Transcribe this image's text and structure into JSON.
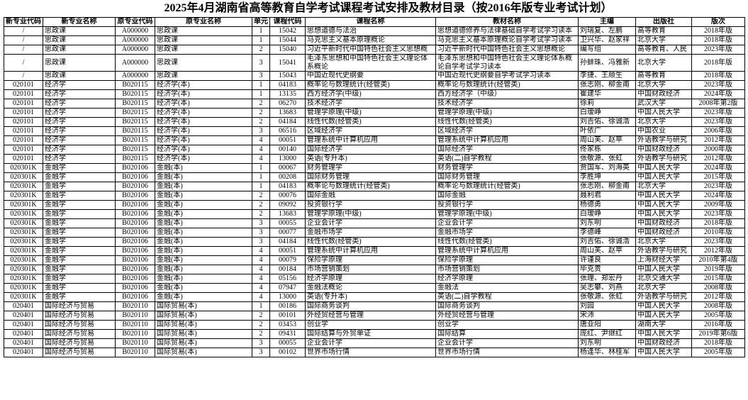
{
  "title": "2025年4月湖南省高等教育自学考试课程考试安排及教材目录（按2016年版专业考试计划）",
  "table": {
    "header": [
      "新专业代码",
      "新专业名称",
      "原专业代码",
      "原专业名称",
      "单元",
      "课程代码",
      "课程名称",
      "教材名称",
      "主编",
      "出版社",
      "版次"
    ],
    "rows": [
      [
        "/",
        "思政课",
        "A000000",
        "思政课",
        "1",
        "15042",
        "思想道德与法治",
        "思想道德修养与法律基础自学考试学习读本",
        "刘瑞复、左鹏",
        "高等教育",
        "2018年版"
      ],
      [
        "/",
        "思政课",
        "A000000",
        "思政课",
        "1",
        "15044",
        "马克思主义基本原理概论",
        "马克思主义基本原理概论自学考试学习读本",
        "卫兴华、赵家祥",
        "北京大学",
        "2018年版"
      ],
      [
        "/",
        "思政课",
        "A000000",
        "思政课",
        "2",
        "15040",
        "习近平新时代中国特色社会主义思想概",
        "习近平新时代中国特色社会主义思想概论",
        "编写组",
        "高等教育、人民",
        "2023年版"
      ],
      [
        "/",
        "思政课",
        "A000000",
        "思政课",
        "3",
        "15041",
        "毛泽东思想和中国特色社会主义理论体系概论",
        "毛泽东思想和中国特色社会主义理论体系概论自学考试学习读本",
        "孙蚌珠、冯雅新",
        "北京大学",
        "2018年版"
      ],
      [
        "/",
        "思政课",
        "A000000",
        "思政课",
        "3",
        "15043",
        "中国近现代史纲要",
        "中国近现代史纲要自学考试学习读本",
        "李捷、王顺生",
        "高等教育",
        "2018年版"
      ],
      [
        "020101",
        "经济学",
        "B020115",
        "经济学(本)",
        "1",
        "04183",
        "概率论与数理统计(经管类)",
        "概率论与数理统计(经管类)",
        "张志刚、柳金甫",
        "北京大学",
        "2023年版"
      ],
      [
        "020101",
        "经济学",
        "B020115",
        "经济学(本)",
        "1",
        "13135",
        "西方经济学(中级)",
        "西方经济学（中级）",
        "崔建华",
        "中国财政经济",
        "2024年版"
      ],
      [
        "020101",
        "经济学",
        "B020115",
        "经济学(本)",
        "2",
        "06270",
        "技术经济学",
        "技术经济学",
        "徐莉",
        "武汉大学",
        "2008年第2版"
      ],
      [
        "020101",
        "经济学",
        "B020115",
        "经济学(本)",
        "2",
        "13683",
        "管理学原理(中级)",
        "管理学原理(中级)",
        "白瑷峥",
        "中国人民大学",
        "2023年版"
      ],
      [
        "020101",
        "经济学",
        "B020115",
        "经济学(本)",
        "2",
        "04184",
        "线性代数(经管类)",
        "线性代数(经管类)",
        "刘吉佑、徐诚浩",
        "北京大学",
        "2023年版"
      ],
      [
        "020101",
        "经济学",
        "B020115",
        "经济学(本)",
        "3",
        "06516",
        "区域经济学",
        "区域经济学",
        "叶依广",
        "中国农业",
        "2006年版"
      ],
      [
        "020101",
        "经济学",
        "B020115",
        "经济学(本)",
        "4",
        "00051",
        "管理系统中计算机应用",
        "管理系统中计算机应用",
        "周山芙、赵苹",
        "外语教学与研究",
        "2012年版"
      ],
      [
        "020101",
        "经济学",
        "B020115",
        "经济学(本)",
        "4",
        "00140",
        "国际经济学",
        "国际经济学",
        "佟家栋",
        "中国财政经济",
        "2000年版"
      ],
      [
        "020101",
        "经济学",
        "B020115",
        "经济学(本)",
        "4",
        "13000",
        "英语(专升本)",
        "英语(二)自学教程",
        "张敬源、张虹",
        "外语教学与研究",
        "2012年版"
      ],
      [
        "020301K",
        "金融学",
        "B020106",
        "金融(本)",
        "1",
        "00067",
        "财务管理学",
        "财务管理学",
        "贾国军、刘海英",
        "中国人民大学",
        "2024年版"
      ],
      [
        "020301K",
        "金融学",
        "B020106",
        "金融(本)",
        "1",
        "00208",
        "国际财务管理",
        "国际财务管理",
        "李胜坤",
        "中国人民大学",
        "2015年版"
      ],
      [
        "020301K",
        "金融学",
        "B020106",
        "金融(本)",
        "1",
        "04183",
        "概率论与数理统计(经管类)",
        "概率论与数理统计(经管类)",
        "张志刚、柳金甫",
        "北京大学",
        "2023年版"
      ],
      [
        "020301K",
        "金融学",
        "B020106",
        "金融(本)",
        "2",
        "00076",
        "国际金融",
        "国际金融",
        "聂利君",
        "中国人民大学",
        "2024年版"
      ],
      [
        "020301K",
        "金融学",
        "B020106",
        "金融(本)",
        "2",
        "09092",
        "投资银行学",
        "投资银行学",
        "杨德勇",
        "中国人民大学",
        "2009年版"
      ],
      [
        "020301K",
        "金融学",
        "B020106",
        "金融(本)",
        "2",
        "13683",
        "管理学原理(中级)",
        "管理学原理(中级)",
        "白瑷峥",
        "中国人民大学",
        "2023年版"
      ],
      [
        "020301K",
        "金融学",
        "B020106",
        "金融(本)",
        "3",
        "00055",
        "企业会计学",
        "企业会计学",
        "刘东明",
        "中国财政经济",
        "2018年版"
      ],
      [
        "020301K",
        "金融学",
        "B020106",
        "金融(本)",
        "3",
        "00077",
        "金融市场学",
        "金融市场学",
        "李德峰",
        "中国财政经济",
        "2010年版"
      ],
      [
        "020301K",
        "金融学",
        "B020106",
        "金融(本)",
        "3",
        "04184",
        "线性代数(经管类)",
        "线性代数(经管类)",
        "刘吉佑、徐诚浩",
        "北京大学",
        "2023年版"
      ],
      [
        "020301K",
        "金融学",
        "B020106",
        "金融(本)",
        "4",
        "00051",
        "管理系统中计算机应用",
        "管理系统中计算机应用",
        "周山芙、赵苹",
        "外语教学与研究",
        "2012年版"
      ],
      [
        "020301K",
        "金融学",
        "B020106",
        "金融(本)",
        "4",
        "00079",
        "保险学原理",
        "保险学原理",
        "许谨良",
        "上海财经大学",
        "2010年第4版"
      ],
      [
        "020301K",
        "金融学",
        "B020106",
        "金融(本)",
        "4",
        "00184",
        "市场营销策划",
        "市场营销策划",
        "毕克贵",
        "中国人民大学",
        "2019年版"
      ],
      [
        "020301K",
        "金融学",
        "B020106",
        "金融(本)",
        "4",
        "05156",
        "经济学原理",
        "经济学原理",
        "张理、郑宏丹",
        "北京交通大学",
        "2015年版"
      ],
      [
        "020301K",
        "金融学",
        "B020106",
        "金融(本)",
        "4",
        "07947",
        "金融法概论",
        "金融法",
        "吴志攀、刘燕",
        "北京大学",
        "2008年版"
      ],
      [
        "020301K",
        "金融学",
        "B020106",
        "金融(本)",
        "4",
        "13000",
        "英语(专升本)",
        "英语(二)自学教程",
        "张敬源、张虹",
        "外语教学与研究",
        "2012年版"
      ],
      [
        "020401",
        "国际经济与贸易",
        "B020110",
        "国际贸易(本)",
        "1",
        "00186",
        "国际商务谈判",
        "国际商务谈判",
        "刘园",
        "中国人民大学",
        "2008年版"
      ],
      [
        "020401",
        "国际经济与贸易",
        "B020110",
        "国际贸易(本)",
        "2",
        "00101",
        "外经贸经营与管理",
        "外经贸经营与管理",
        "宋沛",
        "中国人民大学",
        "2005年版"
      ],
      [
        "020401",
        "国际经济与贸易",
        "B020110",
        "国际贸易(本)",
        "2",
        "03453",
        "创业学",
        "创业学",
        "唐亚阳",
        "湖南大学",
        "2016年版"
      ],
      [
        "020401",
        "国际经济与贸易",
        "B020110",
        "国际贸易(本)",
        "2",
        "09431",
        "国际结算与外贸单证",
        "国际结算",
        "庞红、尹继红",
        "中国人民大学",
        "2019年第6版"
      ],
      [
        "020401",
        "国际经济与贸易",
        "B020110",
        "国际贸易(本)",
        "3",
        "00055",
        "企业会计学",
        "企业会计学",
        "刘东明",
        "中国财政经济",
        "2018年版"
      ],
      [
        "020401",
        "国际经济与贸易",
        "B020110",
        "国际贸易(本)",
        "3",
        "00102",
        "世界市场行情",
        "世界市场行情",
        "杨逢华、林桂军",
        "中国人民大学",
        "2005年版"
      ]
    ]
  }
}
